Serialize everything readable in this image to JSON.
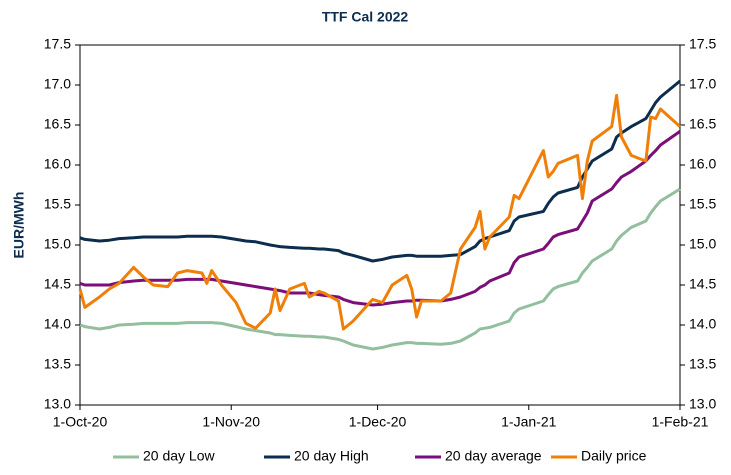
{
  "chart_data": {
    "type": "line",
    "title": "TTF Cal 2022",
    "y_label": "EUR/MWh",
    "x": [
      "2020-10-01",
      "2020-10-02",
      "2020-10-05",
      "2020-10-07",
      "2020-10-09",
      "2020-10-12",
      "2020-10-14",
      "2020-10-16",
      "2020-10-19",
      "2020-10-21",
      "2020-10-23",
      "2020-10-26",
      "2020-10-27",
      "2020-10-28",
      "2020-10-30",
      "2020-11-02",
      "2020-11-04",
      "2020-11-06",
      "2020-11-09",
      "2020-11-10",
      "2020-11-11",
      "2020-11-13",
      "2020-11-16",
      "2020-11-17",
      "2020-11-19",
      "2020-11-20",
      "2020-11-23",
      "2020-11-24",
      "2020-11-26",
      "2020-11-30",
      "2020-12-02",
      "2020-12-04",
      "2020-12-07",
      "2020-12-08",
      "2020-12-09",
      "2020-12-10",
      "2020-12-14",
      "2020-12-16",
      "2020-12-18",
      "2020-12-21",
      "2020-12-22",
      "2020-12-23",
      "2020-12-24",
      "2020-12-28",
      "2020-12-29",
      "2020-12-30",
      "2021-01-04",
      "2021-01-05",
      "2021-01-06",
      "2021-01-07",
      "2021-01-11",
      "2021-01-12",
      "2021-01-13",
      "2021-01-14",
      "2021-01-18",
      "2021-01-19",
      "2021-01-20",
      "2021-01-22",
      "2021-01-25",
      "2021-01-26",
      "2021-01-27",
      "2021-01-28",
      "2021-02-01"
    ],
    "series": [
      {
        "name": "20 day Low",
        "color": "#93bf9f",
        "values": [
          14.0,
          13.98,
          13.95,
          13.97,
          14.0,
          14.01,
          14.02,
          14.02,
          14.02,
          14.02,
          14.03,
          14.03,
          14.03,
          14.03,
          14.02,
          13.98,
          13.95,
          13.93,
          13.9,
          13.88,
          13.88,
          13.87,
          13.86,
          13.86,
          13.85,
          13.85,
          13.82,
          13.8,
          13.75,
          13.7,
          13.72,
          13.75,
          13.78,
          13.78,
          13.77,
          13.77,
          13.76,
          13.77,
          13.8,
          13.9,
          13.95,
          13.96,
          13.97,
          14.05,
          14.15,
          14.2,
          14.3,
          14.38,
          14.45,
          14.48,
          14.55,
          14.65,
          14.72,
          14.8,
          14.95,
          15.05,
          15.12,
          15.22,
          15.3,
          15.4,
          15.48,
          15.55,
          15.7
        ]
      },
      {
        "name": "20 day High",
        "color": "#0c2d4e",
        "values": [
          15.09,
          15.07,
          15.05,
          15.06,
          15.08,
          15.09,
          15.1,
          15.1,
          15.1,
          15.1,
          15.11,
          15.11,
          15.11,
          15.11,
          15.1,
          15.07,
          15.05,
          15.04,
          15.0,
          14.99,
          14.98,
          14.97,
          14.96,
          14.96,
          14.95,
          14.95,
          14.93,
          14.9,
          14.87,
          14.8,
          14.82,
          14.85,
          14.87,
          14.87,
          14.86,
          14.86,
          14.86,
          14.87,
          14.88,
          14.98,
          15.05,
          15.08,
          15.1,
          15.18,
          15.3,
          15.35,
          15.42,
          15.52,
          15.6,
          15.65,
          15.72,
          15.85,
          15.95,
          16.05,
          16.2,
          16.35,
          16.4,
          16.48,
          16.58,
          16.68,
          16.78,
          16.85,
          17.05
        ]
      },
      {
        "name": "20 day average",
        "color": "#7b0f7a",
        "values": [
          14.52,
          14.5,
          14.5,
          14.5,
          14.53,
          14.55,
          14.56,
          14.56,
          14.56,
          14.56,
          14.57,
          14.57,
          14.57,
          14.57,
          14.55,
          14.52,
          14.5,
          14.48,
          14.45,
          14.44,
          14.43,
          14.4,
          14.4,
          14.4,
          14.38,
          14.37,
          14.35,
          14.32,
          14.28,
          14.25,
          14.26,
          14.28,
          14.3,
          14.3,
          14.31,
          14.31,
          14.3,
          14.32,
          14.35,
          14.42,
          14.47,
          14.5,
          14.55,
          14.65,
          14.78,
          14.85,
          14.95,
          15.02,
          15.1,
          15.13,
          15.2,
          15.3,
          15.4,
          15.55,
          15.7,
          15.78,
          15.85,
          15.92,
          16.05,
          16.12,
          16.18,
          16.25,
          16.42
        ]
      },
      {
        "name": "Daily price",
        "color": "#f07f09",
        "values": [
          14.45,
          14.22,
          14.35,
          14.45,
          14.52,
          14.72,
          14.6,
          14.5,
          14.48,
          14.65,
          14.68,
          14.65,
          14.52,
          14.68,
          14.5,
          14.28,
          14.02,
          13.96,
          14.15,
          14.45,
          14.18,
          14.45,
          14.52,
          14.35,
          14.42,
          14.4,
          14.3,
          13.95,
          14.05,
          14.32,
          14.28,
          14.5,
          14.62,
          14.45,
          14.1,
          14.3,
          14.3,
          14.4,
          14.95,
          15.22,
          15.42,
          14.95,
          15.1,
          15.35,
          15.62,
          15.58,
          16.18,
          15.85,
          15.92,
          16.02,
          16.12,
          15.58,
          16.05,
          16.3,
          16.48,
          16.87,
          16.35,
          16.12,
          16.05,
          16.6,
          16.58,
          16.7,
          16.48
        ]
      }
    ],
    "xlim": [
      "2020-10-01",
      "2021-02-01"
    ],
    "xticks": [
      {
        "value": "2020-10-01",
        "label": "1-Oct-20"
      },
      {
        "value": "2020-11-01",
        "label": "1-Nov-20"
      },
      {
        "value": "2020-12-01",
        "label": "1-Dec-20"
      },
      {
        "value": "2021-01-01",
        "label": "1-Jan-21"
      },
      {
        "value": "2021-02-01",
        "label": "1-Feb-21"
      }
    ],
    "ylim": [
      13.0,
      17.5
    ],
    "yticks": [
      {
        "value": 13,
        "label": "13.0"
      },
      13.5,
      {
        "value": 14,
        "label": "14.0"
      },
      14.5,
      {
        "value": 15,
        "label": "15.0"
      },
      15.5,
      {
        "value": 16,
        "label": "16.0"
      },
      16.5,
      {
        "value": 17,
        "label": "17.0"
      },
      17.5
    ],
    "y2lim": [
      13.0,
      17.5
    ],
    "y2ticks": [
      {
        "value": 13,
        "label": "13.0"
      },
      13.5,
      {
        "value": 14,
        "label": "14.0"
      },
      14.5,
      {
        "value": 15,
        "label": "15.0"
      },
      15.5,
      {
        "value": 16,
        "label": "16.0"
      },
      16.5,
      {
        "value": 17,
        "label": "17.0"
      },
      17.5
    ],
    "legend": "bottom"
  }
}
